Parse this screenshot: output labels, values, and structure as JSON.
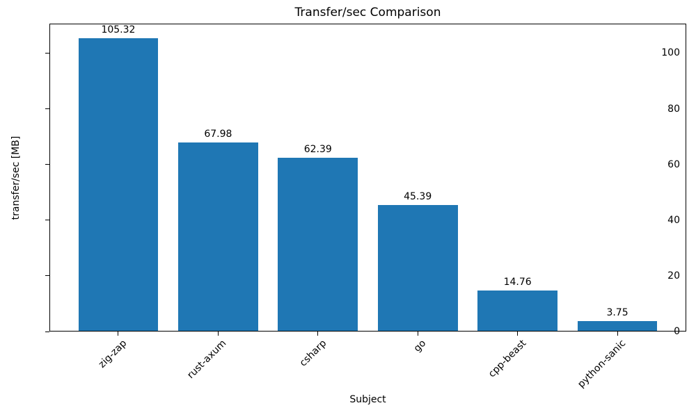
{
  "chart_data": {
    "type": "bar",
    "title": "Transfer/sec Comparison",
    "xlabel": "Subject",
    "ylabel": "transfer/sec [MB]",
    "categories": [
      "zig-zap",
      "rust-axum",
      "csharp",
      "go",
      "cpp-beast",
      "python-sanic"
    ],
    "values": [
      105.32,
      67.98,
      62.39,
      45.39,
      14.76,
      3.75
    ],
    "value_labels": [
      "105.32",
      "67.98",
      "62.39",
      "45.39",
      "14.76",
      "3.75"
    ],
    "yticks": [
      0,
      20,
      40,
      60,
      80,
      100
    ],
    "ylim": [
      0,
      110.6
    ],
    "bar_color": "#1f77b4",
    "bar_width_fraction": 0.8,
    "grid": false,
    "legend_position": "none",
    "tick_label_rotation_deg": 45
  }
}
